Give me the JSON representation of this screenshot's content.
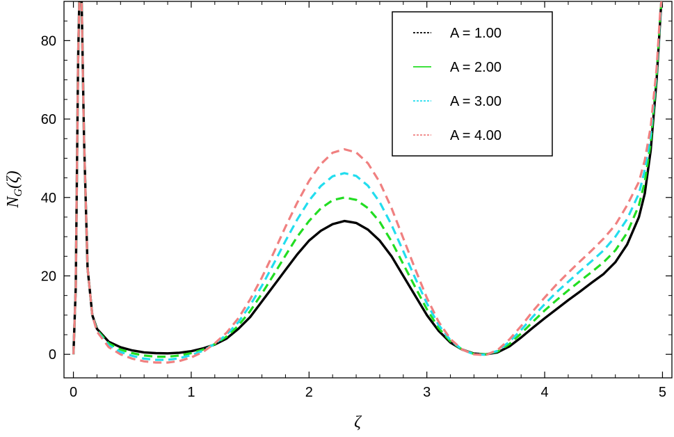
{
  "chart_data": {
    "type": "line",
    "xlabel": "ζ",
    "ylabel_main": "N",
    "ylabel_sub": "G",
    "ylabel_arg": "(ζ)",
    "xlim": [
      -0.08,
      5.08
    ],
    "ylim": [
      -6,
      90
    ],
    "xticks": [
      "0",
      "1",
      "2",
      "3",
      "4",
      "5"
    ],
    "yticks": [
      "0",
      "20",
      "40",
      "60",
      "80"
    ],
    "legend_position": "top-right",
    "series": [
      {
        "name": "A = 1.00",
        "color": "#000000",
        "style": "solid",
        "points": [
          [
            0.0,
            0.0
          ],
          [
            0.02,
            17
          ],
          [
            0.04,
            75
          ],
          [
            0.05,
            90
          ],
          [
            0.07,
            90
          ],
          [
            0.09,
            55
          ],
          [
            0.12,
            22
          ],
          [
            0.16,
            10
          ],
          [
            0.2,
            6.5
          ],
          [
            0.3,
            3.2
          ],
          [
            0.4,
            1.8
          ],
          [
            0.5,
            1.0
          ],
          [
            0.6,
            0.5
          ],
          [
            0.7,
            0.3
          ],
          [
            0.8,
            0.25
          ],
          [
            0.9,
            0.4
          ],
          [
            1.0,
            0.8
          ],
          [
            1.1,
            1.5
          ],
          [
            1.2,
            2.5
          ],
          [
            1.3,
            4.0
          ],
          [
            1.4,
            6.5
          ],
          [
            1.5,
            9.5
          ],
          [
            1.6,
            13.5
          ],
          [
            1.7,
            17.5
          ],
          [
            1.8,
            21.5
          ],
          [
            1.9,
            25.5
          ],
          [
            2.0,
            29
          ],
          [
            2.1,
            31.5
          ],
          [
            2.2,
            33.2
          ],
          [
            2.3,
            34
          ],
          [
            2.4,
            33.5
          ],
          [
            2.5,
            31.8
          ],
          [
            2.6,
            29
          ],
          [
            2.7,
            25
          ],
          [
            2.8,
            20
          ],
          [
            2.9,
            15
          ],
          [
            3.0,
            10
          ],
          [
            3.1,
            6
          ],
          [
            3.2,
            3
          ],
          [
            3.3,
            1.2
          ],
          [
            3.4,
            0.2
          ],
          [
            3.5,
            0.0
          ],
          [
            3.6,
            0.5
          ],
          [
            3.7,
            2.0
          ],
          [
            3.8,
            4.3
          ],
          [
            3.9,
            6.8
          ],
          [
            4.0,
            9.2
          ],
          [
            4.1,
            11.5
          ],
          [
            4.2,
            13.8
          ],
          [
            4.3,
            16
          ],
          [
            4.4,
            18.3
          ],
          [
            4.5,
            20.5
          ],
          [
            4.6,
            23.5
          ],
          [
            4.7,
            28
          ],
          [
            4.8,
            35
          ],
          [
            4.85,
            41
          ],
          [
            4.9,
            52
          ],
          [
            4.95,
            70
          ],
          [
            4.98,
            85
          ],
          [
            4.99,
            90
          ]
        ]
      },
      {
        "name": "A = 2.00",
        "color": "#22dd22",
        "style": "dashed",
        "points": [
          [
            0.0,
            0.0
          ],
          [
            0.02,
            17
          ],
          [
            0.04,
            75
          ],
          [
            0.05,
            90
          ],
          [
            0.07,
            90
          ],
          [
            0.09,
            55
          ],
          [
            0.12,
            22
          ],
          [
            0.16,
            10
          ],
          [
            0.2,
            6.2
          ],
          [
            0.3,
            2.8
          ],
          [
            0.4,
            1.2
          ],
          [
            0.5,
            0.3
          ],
          [
            0.6,
            -0.3
          ],
          [
            0.7,
            -0.6
          ],
          [
            0.8,
            -0.6
          ],
          [
            0.9,
            -0.3
          ],
          [
            1.0,
            0.3
          ],
          [
            1.1,
            1.2
          ],
          [
            1.2,
            2.6
          ],
          [
            1.3,
            4.5
          ],
          [
            1.4,
            7.3
          ],
          [
            1.5,
            11
          ],
          [
            1.6,
            15.5
          ],
          [
            1.7,
            20.3
          ],
          [
            1.8,
            25.2
          ],
          [
            1.9,
            30
          ],
          [
            2.0,
            34
          ],
          [
            2.1,
            37.2
          ],
          [
            2.2,
            39.3
          ],
          [
            2.3,
            40
          ],
          [
            2.4,
            39.4
          ],
          [
            2.5,
            37.3
          ],
          [
            2.6,
            33.8
          ],
          [
            2.7,
            28.8
          ],
          [
            2.8,
            23
          ],
          [
            2.9,
            17.2
          ],
          [
            3.0,
            11.5
          ],
          [
            3.1,
            6.7
          ],
          [
            3.2,
            3.3
          ],
          [
            3.3,
            1.2
          ],
          [
            3.4,
            0.1
          ],
          [
            3.5,
            0.0
          ],
          [
            3.6,
            0.7
          ],
          [
            3.7,
            2.6
          ],
          [
            3.8,
            5.3
          ],
          [
            3.9,
            8.3
          ],
          [
            4.0,
            11.2
          ],
          [
            4.1,
            13.8
          ],
          [
            4.2,
            16.3
          ],
          [
            4.3,
            18.7
          ],
          [
            4.4,
            21
          ],
          [
            4.5,
            23.5
          ],
          [
            4.6,
            26.5
          ],
          [
            4.7,
            31
          ],
          [
            4.8,
            38
          ],
          [
            4.85,
            44
          ],
          [
            4.9,
            54
          ],
          [
            4.95,
            71
          ],
          [
            4.98,
            86
          ],
          [
            4.99,
            90
          ]
        ]
      },
      {
        "name": "A = 3.00",
        "color": "#22ddee",
        "style": "dashed",
        "points": [
          [
            0.0,
            0.0
          ],
          [
            0.02,
            17
          ],
          [
            0.04,
            75
          ],
          [
            0.05,
            90
          ],
          [
            0.07,
            90
          ],
          [
            0.09,
            55
          ],
          [
            0.12,
            22
          ],
          [
            0.16,
            10
          ],
          [
            0.2,
            6.0
          ],
          [
            0.3,
            2.3
          ],
          [
            0.4,
            0.6
          ],
          [
            0.5,
            -0.4
          ],
          [
            0.6,
            -1.1
          ],
          [
            0.7,
            -1.4
          ],
          [
            0.8,
            -1.4
          ],
          [
            0.9,
            -1.0
          ],
          [
            1.0,
            -0.2
          ],
          [
            1.1,
            0.9
          ],
          [
            1.2,
            2.7
          ],
          [
            1.3,
            5.0
          ],
          [
            1.4,
            8.2
          ],
          [
            1.5,
            12.5
          ],
          [
            1.6,
            17.5
          ],
          [
            1.7,
            23.1
          ],
          [
            1.8,
            28.9
          ],
          [
            1.9,
            34.4
          ],
          [
            2.0,
            39.2
          ],
          [
            2.1,
            42.9
          ],
          [
            2.2,
            45.4
          ],
          [
            2.3,
            46.2
          ],
          [
            2.4,
            45.5
          ],
          [
            2.5,
            43
          ],
          [
            2.6,
            38.8
          ],
          [
            2.7,
            33
          ],
          [
            2.8,
            26.3
          ],
          [
            2.9,
            19.5
          ],
          [
            3.0,
            13
          ],
          [
            3.1,
            7.5
          ],
          [
            3.2,
            3.6
          ],
          [
            3.3,
            1.2
          ],
          [
            3.4,
            0.0
          ],
          [
            3.5,
            -0.1
          ],
          [
            3.6,
            0.9
          ],
          [
            3.7,
            3.2
          ],
          [
            3.8,
            6.2
          ],
          [
            3.9,
            9.6
          ],
          [
            4.0,
            12.8
          ],
          [
            4.1,
            15.8
          ],
          [
            4.2,
            18.5
          ],
          [
            4.3,
            21.2
          ],
          [
            4.4,
            23.8
          ],
          [
            4.5,
            26.5
          ],
          [
            4.6,
            30
          ],
          [
            4.7,
            34.5
          ],
          [
            4.8,
            41
          ],
          [
            4.85,
            47
          ],
          [
            4.9,
            56
          ],
          [
            4.95,
            72
          ],
          [
            4.98,
            86
          ],
          [
            4.99,
            90
          ]
        ]
      },
      {
        "name": "A = 4.00",
        "color": "#f08080",
        "style": "dashed",
        "points": [
          [
            0.0,
            0.0
          ],
          [
            0.02,
            17
          ],
          [
            0.04,
            75
          ],
          [
            0.05,
            90
          ],
          [
            0.07,
            90
          ],
          [
            0.09,
            55
          ],
          [
            0.12,
            22
          ],
          [
            0.16,
            10
          ],
          [
            0.2,
            5.8
          ],
          [
            0.3,
            1.8
          ],
          [
            0.4,
            0.0
          ],
          [
            0.5,
            -1.1
          ],
          [
            0.6,
            -1.8
          ],
          [
            0.7,
            -2.1
          ],
          [
            0.8,
            -2.1
          ],
          [
            0.9,
            -1.7
          ],
          [
            1.0,
            -0.8
          ],
          [
            1.1,
            0.6
          ],
          [
            1.2,
            2.8
          ],
          [
            1.3,
            5.5
          ],
          [
            1.4,
            9.2
          ],
          [
            1.5,
            14
          ],
          [
            1.6,
            19.6
          ],
          [
            1.7,
            25.9
          ],
          [
            1.8,
            32.5
          ],
          [
            1.9,
            38.7
          ],
          [
            2.0,
            44.2
          ],
          [
            2.1,
            48.5
          ],
          [
            2.2,
            51.4
          ],
          [
            2.3,
            52.3
          ],
          [
            2.4,
            51.5
          ],
          [
            2.5,
            48.7
          ],
          [
            2.6,
            43.9
          ],
          [
            2.7,
            37.3
          ],
          [
            2.8,
            29.6
          ],
          [
            2.9,
            21.8
          ],
          [
            3.0,
            14.4
          ],
          [
            3.1,
            8.3
          ],
          [
            3.2,
            3.9
          ],
          [
            3.3,
            1.2
          ],
          [
            3.4,
            0.0
          ],
          [
            3.5,
            -0.2
          ],
          [
            3.6,
            1.1
          ],
          [
            3.7,
            3.8
          ],
          [
            3.8,
            7.2
          ],
          [
            3.9,
            11
          ],
          [
            4.0,
            14.5
          ],
          [
            4.1,
            17.8
          ],
          [
            4.2,
            20.8
          ],
          [
            4.3,
            23.7
          ],
          [
            4.4,
            26.5
          ],
          [
            4.5,
            29.5
          ],
          [
            4.6,
            33
          ],
          [
            4.7,
            38
          ],
          [
            4.8,
            44
          ],
          [
            4.85,
            49.5
          ],
          [
            4.9,
            58
          ],
          [
            4.95,
            73
          ],
          [
            4.98,
            87
          ],
          [
            4.99,
            90
          ]
        ]
      }
    ]
  }
}
